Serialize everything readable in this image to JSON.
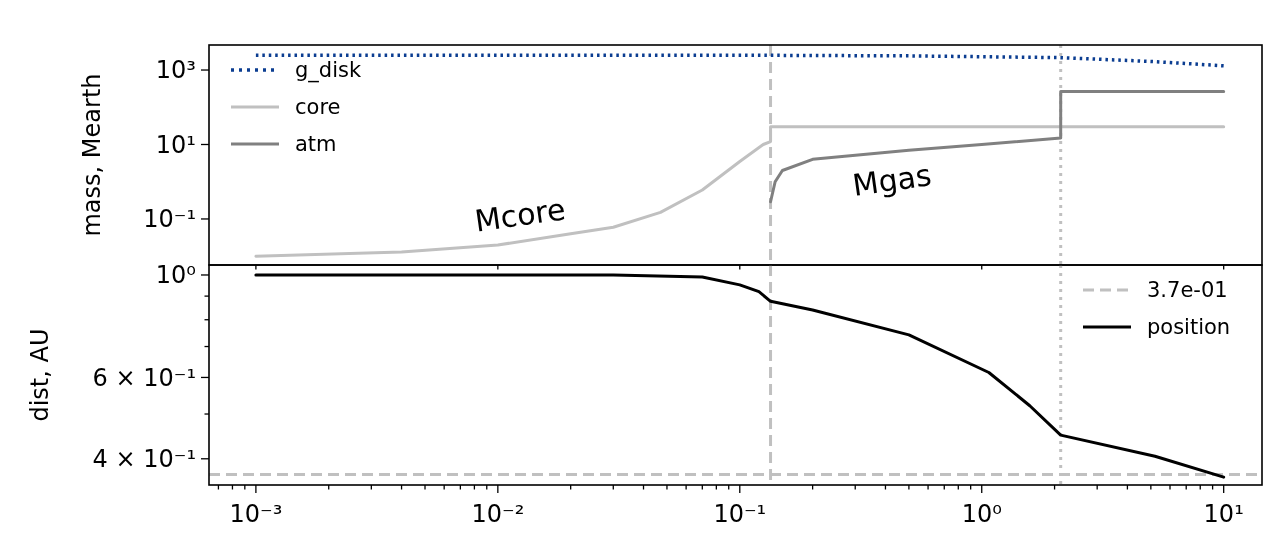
{
  "chart_data": [
    {
      "type": "line",
      "ylabel": "mass, Mearth",
      "log": "xy",
      "legend": "top left",
      "tick_labels": "y",
      "xlim": [
        0.00064,
        14.4
      ],
      "ylim": [
        0.0058,
        4700
      ],
      "xticks": [
        {
          "value": 0.001,
          "label": null
        },
        {
          "value": 0.01,
          "label": null
        },
        {
          "value": 0.1,
          "label": null
        },
        {
          "value": 1,
          "label": null
        },
        {
          "value": 10,
          "label": null
        }
      ],
      "yticks": [
        {
          "value": 0.1,
          "label": "10⁻¹"
        },
        {
          "value": 10,
          "label": "10¹"
        },
        {
          "value": 1000,
          "label": "10³"
        }
      ],
      "series": [
        {
          "name": "g_disk",
          "color": "#0b3d91",
          "line_style": "dotted",
          "x": [
            0.001,
            0.1,
            0.5,
            2.12,
            5,
            10
          ],
          "values": [
            2500,
            2500,
            2400,
            2150,
            1700,
            1300
          ]
        },
        {
          "name": "core",
          "color": "#c0c0c0",
          "line_style": "solid",
          "x": [
            0.001,
            0.004,
            0.01,
            0.02,
            0.03,
            0.047,
            0.07,
            0.1,
            0.125,
            0.134,
            0.134,
            10
          ],
          "values": [
            0.01,
            0.013,
            0.02,
            0.04,
            0.06,
            0.15,
            0.6,
            3.5,
            10,
            12,
            30,
            30
          ]
        },
        {
          "name": "atm",
          "color": "#808080",
          "line_style": "solid",
          "x": [
            0.134,
            0.14,
            0.15,
            0.2,
            0.5,
            1,
            2.12,
            2.12,
            10
          ],
          "values": [
            0.29,
            1,
            2,
            4,
            7,
            10,
            15,
            265,
            265
          ]
        }
      ],
      "ref_lines": [
        {
          "axis": "x",
          "value": 0.134,
          "color": "#c0c0c0",
          "line_style": "dashed"
        },
        {
          "axis": "x",
          "value": 2.12,
          "color": "#c0c0c0",
          "line_style": "dotted"
        }
      ],
      "annotations": [
        "Mcore",
        "Mgas"
      ]
    },
    {
      "type": "line",
      "ylabel": "dist, AU",
      "log": "xy",
      "legend": "top right",
      "xlim": [
        0.00064,
        14.4
      ],
      "ylim": [
        0.351,
        1.051
      ],
      "xticks": [
        {
          "value": 0.0007,
          "label": null
        },
        {
          "value": 0.0008,
          "label": null
        },
        {
          "value": 0.0009,
          "label": null
        },
        {
          "value": 0.001,
          "label": "10⁻³"
        },
        {
          "value": 0.002,
          "label": null
        },
        {
          "value": 0.003,
          "label": null
        },
        {
          "value": 0.004,
          "label": null
        },
        {
          "value": 0.005,
          "label": null
        },
        {
          "value": 0.006,
          "label": null
        },
        {
          "value": 0.007,
          "label": null
        },
        {
          "value": 0.008,
          "label": null
        },
        {
          "value": 0.009,
          "label": null
        },
        {
          "value": 0.01,
          "label": "10⁻²"
        },
        {
          "value": 0.02,
          "label": null
        },
        {
          "value": 0.03,
          "label": null
        },
        {
          "value": 0.04,
          "label": null
        },
        {
          "value": 0.05,
          "label": null
        },
        {
          "value": 0.06,
          "label": null
        },
        {
          "value": 0.07,
          "label": null
        },
        {
          "value": 0.08,
          "label": null
        },
        {
          "value": 0.09,
          "label": null
        },
        {
          "value": 0.1,
          "label": "10⁻¹"
        },
        {
          "value": 0.2,
          "label": null
        },
        {
          "value": 0.3,
          "label": null
        },
        {
          "value": 0.4,
          "label": null
        },
        {
          "value": 0.5,
          "label": null
        },
        {
          "value": 0.6,
          "label": null
        },
        {
          "value": 0.7,
          "label": null
        },
        {
          "value": 0.8,
          "label": null
        },
        {
          "value": 0.9,
          "label": null
        },
        {
          "value": 1,
          "label": "10⁰"
        },
        {
          "value": 2,
          "label": null
        },
        {
          "value": 3,
          "label": null
        },
        {
          "value": 4,
          "label": null
        },
        {
          "value": 5,
          "label": null
        },
        {
          "value": 6,
          "label": null
        },
        {
          "value": 7,
          "label": null
        },
        {
          "value": 8,
          "label": null
        },
        {
          "value": 9,
          "label": null
        },
        {
          "value": 10,
          "label": "10¹"
        }
      ],
      "yticks": [
        {
          "value": 0.4,
          "label": "4 × 10⁻¹"
        },
        {
          "value": 0.5,
          "label": null
        },
        {
          "value": 0.6,
          "label": "6 × 10⁻¹"
        },
        {
          "value": 0.7,
          "label": null
        },
        {
          "value": 0.8,
          "label": null
        },
        {
          "value": 0.9,
          "label": null
        },
        {
          "value": 1,
          "label": "10⁰"
        }
      ],
      "series": [
        {
          "name": "position",
          "color": "#000000",
          "line_style": "solid",
          "x": [
            0.001,
            0.03,
            0.07,
            0.1,
            0.12,
            0.134,
            0.2,
            0.5,
            1.07,
            1.58,
            2.12,
            5.2,
            10
          ],
          "values": [
            1.0,
            1.0,
            0.99,
            0.952,
            0.92,
            0.877,
            0.84,
            0.742,
            0.615,
            0.521,
            0.45,
            0.405,
            0.365
          ]
        }
      ],
      "ref_lines": [
        {
          "axis": "y",
          "value": 0.37,
          "label": "3.7e-01",
          "color": "#c0c0c0",
          "line_style": "dashed"
        },
        {
          "axis": "x",
          "value": 0.134,
          "color": "#c0c0c0",
          "line_style": "dashed"
        },
        {
          "axis": "x",
          "value": 2.12,
          "color": "#c0c0c0",
          "line_style": "dotted"
        }
      ]
    }
  ]
}
